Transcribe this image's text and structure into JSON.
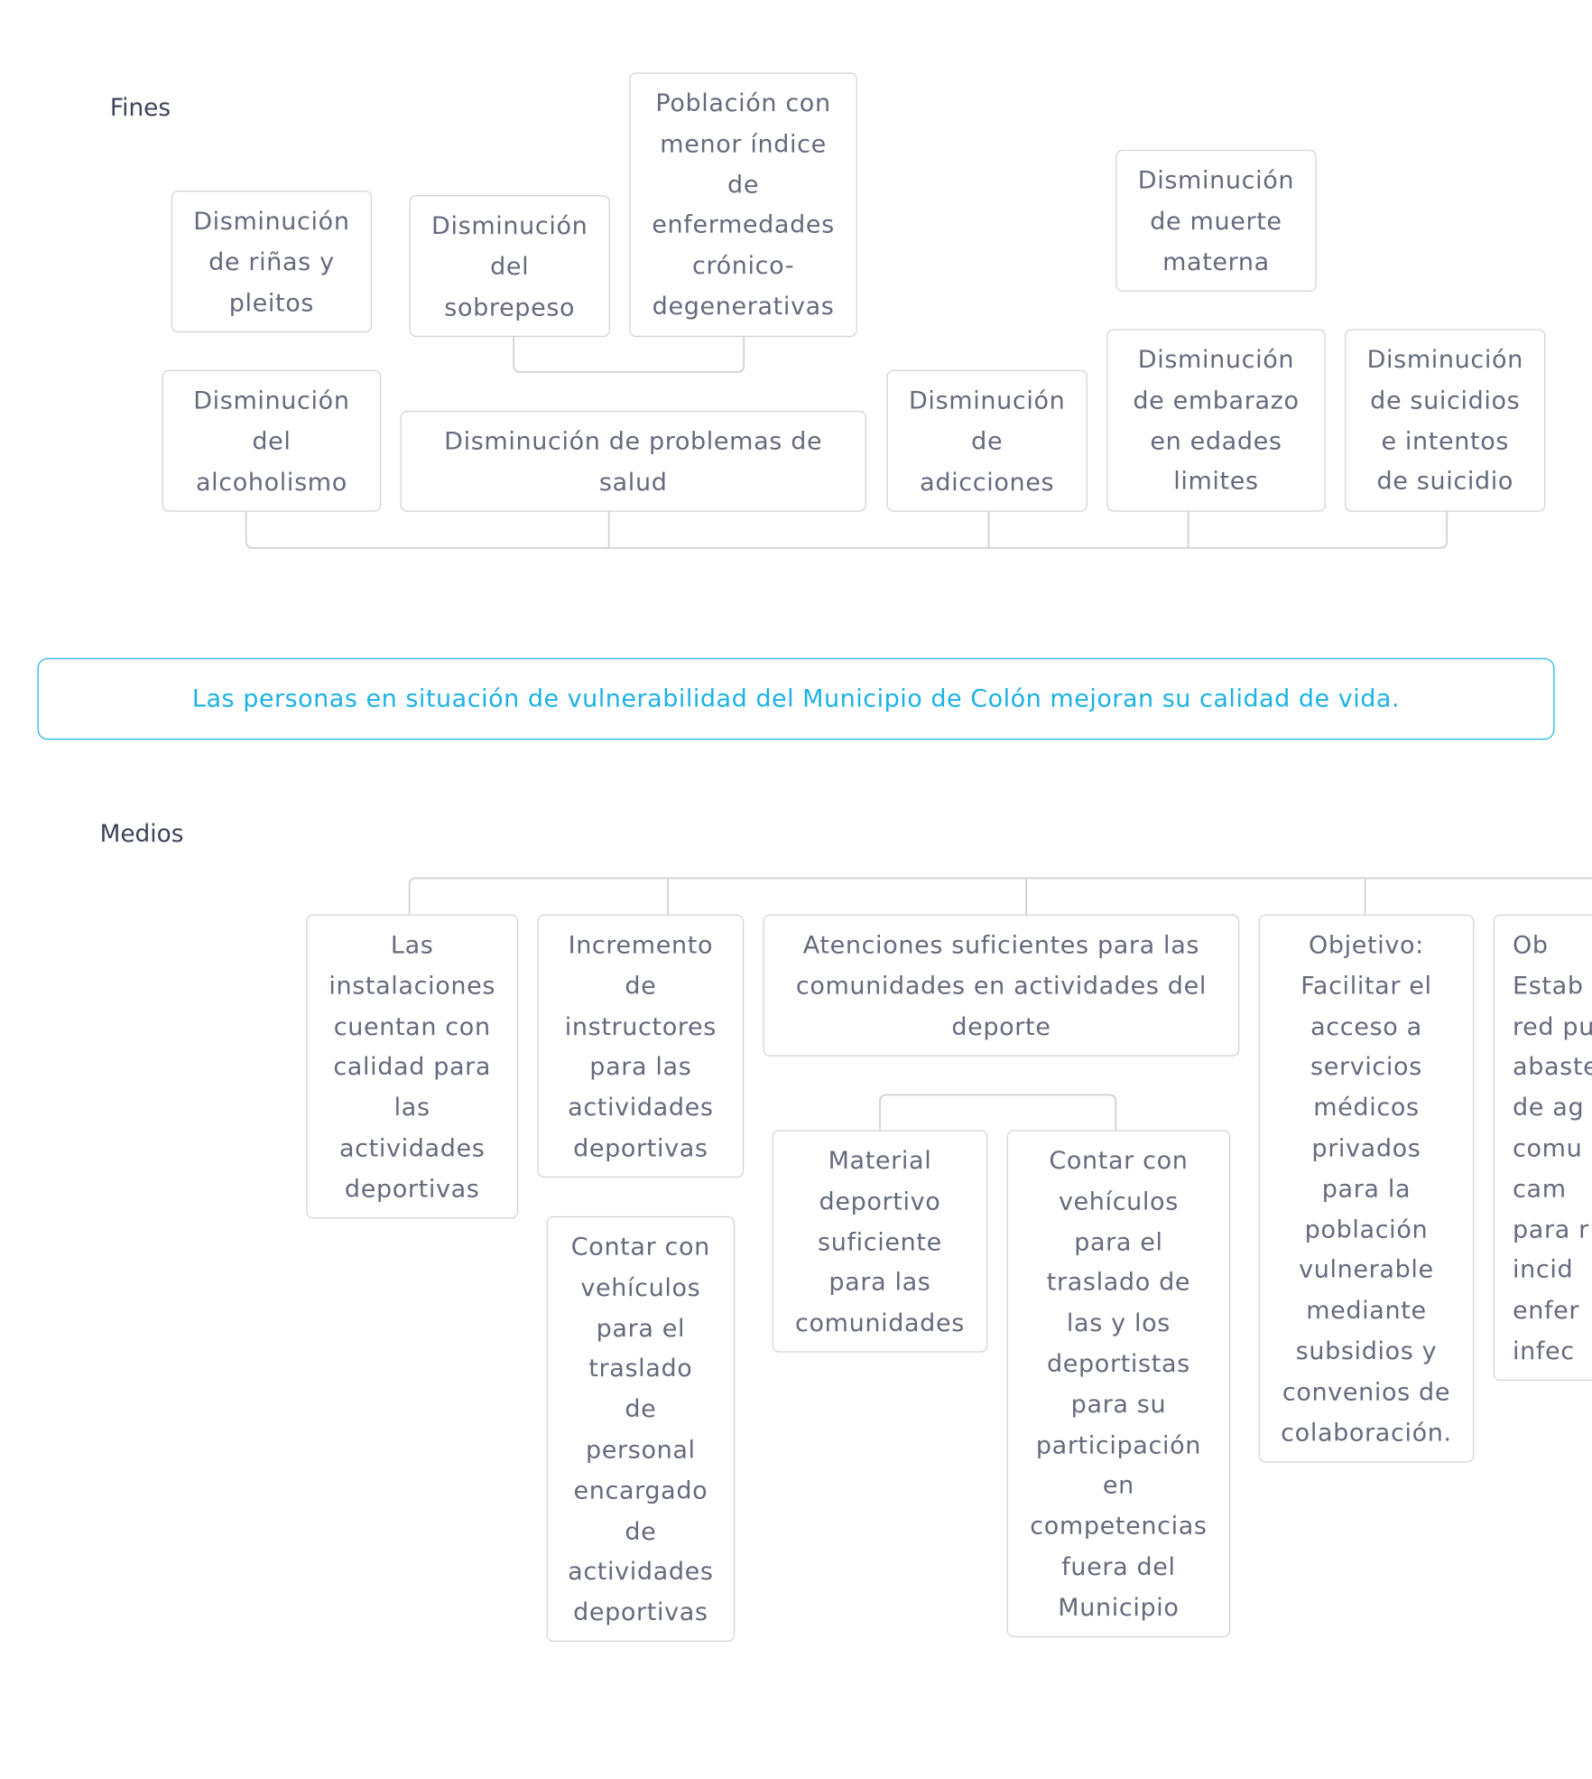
{
  "fines": {
    "label": "Fines",
    "nodes": {
      "rinas": "Disminución\nde riñas y\npleitos",
      "sobrepeso": "Disminución\ndel\nsobrepeso",
      "cronicas": "Población con\nmenor índice\nde\nenfermedades\ncrónico-\ndegenerativas",
      "muerte_materna": "Disminución\nde muerte\nmaterna",
      "alcoholismo": "Disminución\ndel\nalcoholismo",
      "problemas_salud": "Disminución de problemas de\nsalud",
      "adicciones": "Disminución\nde\nadicciones",
      "embarazo": "Disminución\nde embarazo\nen edades\nlimites",
      "suicidios": "Disminución\nde suicidios\ne intentos\nde suicidio"
    }
  },
  "objective": "Las personas en situación de vulnerabilidad del Municipio de Colón mejoran su calidad de vida.",
  "medios": {
    "label": "Medios",
    "nodes": {
      "instalaciones": "Las\ninstalaciones\ncuentan con\ncalidad para\nlas\nactividades\ndeportivas",
      "instructores": "Incremento\nde\ninstructores\npara las\nactividades\ndeportivas",
      "atenciones": "Atenciones suficientes para las\ncomunidades en actividades del\ndeporte",
      "objetivo_medicos": "Objetivo:\nFacilitar el\nacceso a\nservicios\nmédicos\nprivados\npara la\npoblación\nvulnerable\nmediante\nsubsidios y\nconvenios de\ncolaboración.",
      "objetivo_agua": "Ob\nEstab\nred pu\nabaste\nde ag\ncomu\ncam\npara r\nincid\nenfer\ninfec",
      "vehiculos_personal": "Contar con\nvehículos\npara el\ntraslado\nde\npersonal\nencargado\nde\nactividades\ndeportivas",
      "material": "Material\ndeportivo\nsuficiente\npara las\ncomunidades",
      "vehiculos_deportistas": "Contar con\nvehículos\npara el\ntraslado de\nlas y los\ndeportistas\npara su\nparticipación\nen\ncompetencias\nfuera del\nMunicipio"
    }
  },
  "colors": {
    "accent": "#1fb6ea",
    "text": "#656a7c",
    "border": "#d3d3d6"
  }
}
